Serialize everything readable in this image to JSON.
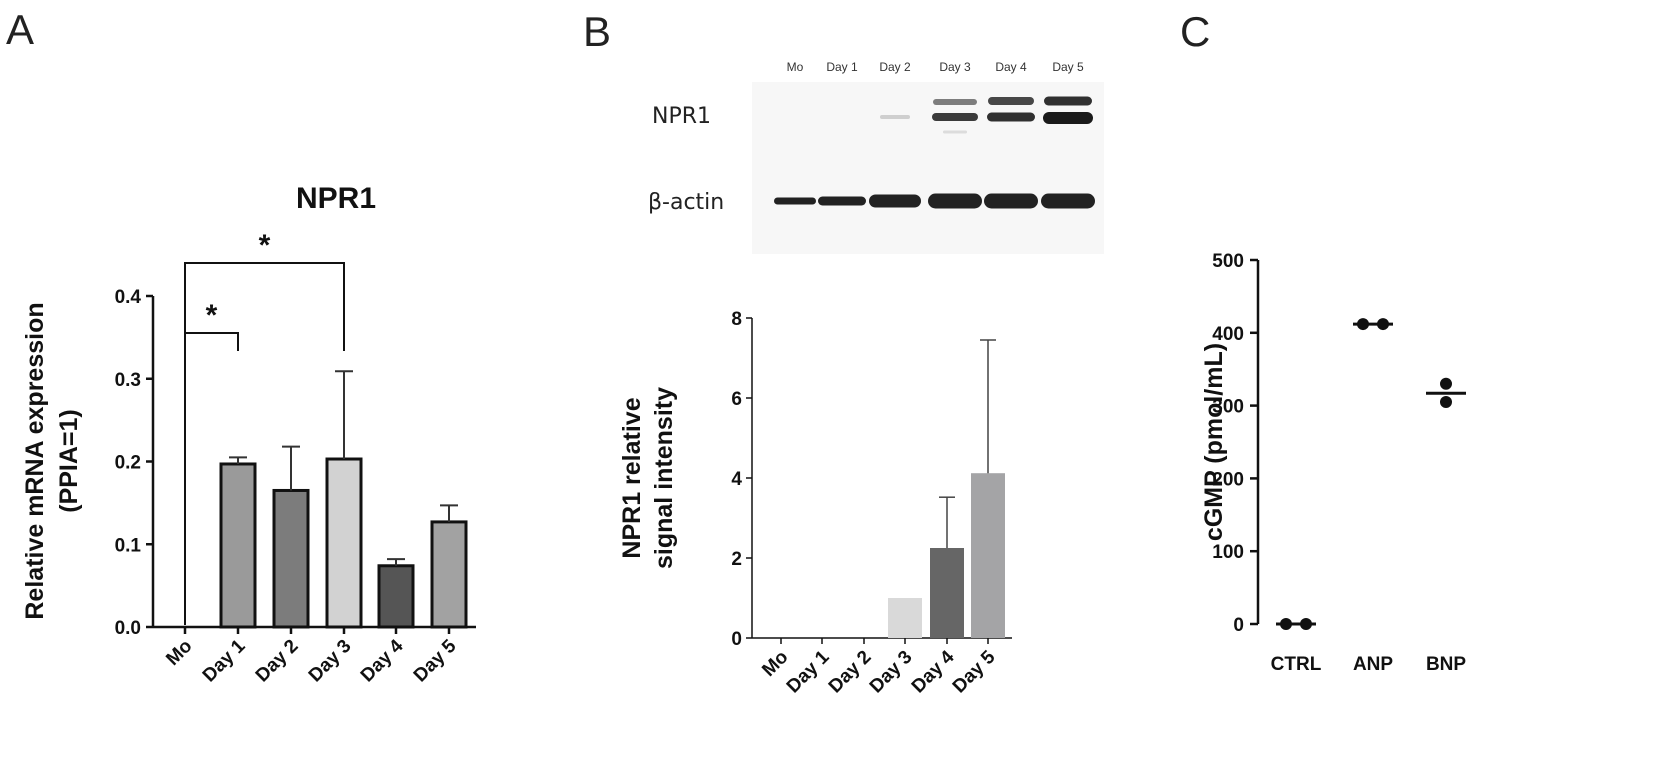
{
  "panels": {
    "A": {
      "letter": "A"
    },
    "B": {
      "letter": "B"
    },
    "C": {
      "letter": "C"
    }
  },
  "colors": {
    "axis": "#111111",
    "bar_outline": "#111111",
    "panel_a_fills": [
      "#ffffff",
      "#9a9a9a",
      "#7c7c7c",
      "#d2d2d2",
      "#555555",
      "#a2a2a2"
    ],
    "panel_b_fills": [
      "#ffffff",
      "#ffffff",
      "#ffffff",
      "#d9d9d9",
      "#666666",
      "#a4a4a6"
    ],
    "point": "#111111"
  },
  "blot": {
    "lanes": [
      "Mo",
      "Day 1",
      "Day 2",
      "Day 3",
      "Day 4",
      "Day 5"
    ],
    "rows": [
      "NPR1",
      "β-actin"
    ]
  },
  "chart_data": [
    {
      "panel": "A",
      "type": "bar",
      "title": "NPR1",
      "ylabel": [
        "Relative mRNA expression",
        "(PPIA=1)"
      ],
      "xlabel": "",
      "categories": [
        "Mo",
        "Day 1",
        "Day 2",
        "Day 3",
        "Day 4",
        "Day 5"
      ],
      "values": [
        0.0,
        0.197,
        0.165,
        0.203,
        0.074,
        0.127
      ],
      "errors": [
        0.0,
        0.008,
        0.053,
        0.106,
        0.008,
        0.02
      ],
      "ylim": [
        0.0,
        0.4
      ],
      "yticks": [
        "0.0",
        "0.1",
        "0.2",
        "0.3",
        "0.4"
      ],
      "significance": [
        {
          "from": "Mo",
          "to": "Day 1",
          "label": "*"
        },
        {
          "from": "Mo",
          "to": "Day 3",
          "label": "*"
        }
      ],
      "grid": false
    },
    {
      "panel": "B",
      "type": "bar",
      "title": "",
      "ylabel": [
        "NPR1 relative",
        "signal intensity"
      ],
      "xlabel": "",
      "categories": [
        "Mo",
        "Day 1",
        "Day 2",
        "Day 3",
        "Day 4",
        "Day 5"
      ],
      "values": [
        0,
        0,
        0,
        1.0,
        2.25,
        4.12
      ],
      "errors": [
        0,
        0,
        0,
        0,
        1.27,
        3.33
      ],
      "ylim": [
        0,
        8
      ],
      "yticks": [
        "0",
        "2",
        "4",
        "6",
        "8"
      ],
      "grid": false
    },
    {
      "panel": "C",
      "type": "scatter",
      "title": "",
      "ylabel": [
        "cGMP (pmol/mL)"
      ],
      "xlabel": "",
      "categories": [
        "CTRL",
        "ANP",
        "BNP"
      ],
      "points": [
        [
          0,
          0
        ],
        [
          412,
          412
        ],
        [
          330,
          305
        ]
      ],
      "means": [
        0,
        412,
        317
      ],
      "ylim": [
        0,
        500
      ],
      "yticks": [
        "0",
        "100",
        "200",
        "300",
        "400",
        "500"
      ],
      "grid": false
    }
  ]
}
